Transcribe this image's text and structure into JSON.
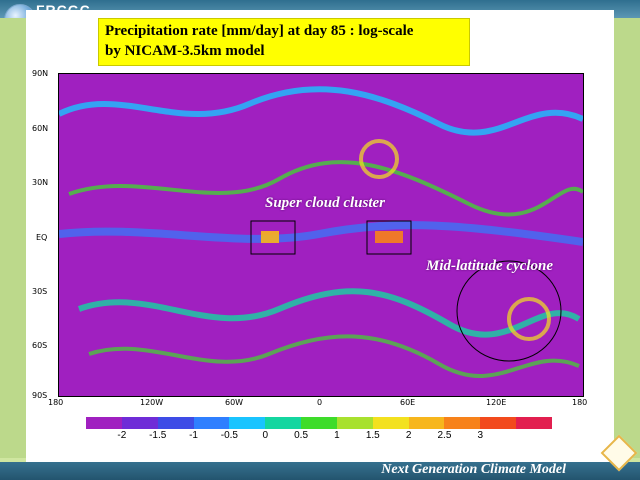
{
  "branding": {
    "name": "FRCGC",
    "icon": "globe-icon"
  },
  "title": {
    "line1": "Precipitation rate [mm/day] at day 85 : log-scale",
    "line2": "by NICAM-3.5km model"
  },
  "map": {
    "lat_labels": [
      "90N",
      "60N",
      "30N",
      "EQ",
      "30S",
      "60S",
      "90S"
    ],
    "lon_labels": [
      "180",
      "120W",
      "60W",
      "0",
      "60E",
      "120E",
      "180"
    ],
    "annotations": {
      "cluster": "Super cloud cluster",
      "cyclone": "Mid-latitude cyclone"
    }
  },
  "colorbar": {
    "colors": [
      "#a020c0",
      "#6f2cd7",
      "#3e4ce6",
      "#2f7fff",
      "#19c4ff",
      "#14d6a0",
      "#3edc2a",
      "#a8e12e",
      "#f3e11f",
      "#f7b61c",
      "#f7821a",
      "#f24a1d",
      "#e21f4f"
    ],
    "labels": [
      "-2",
      "-1.5",
      "-1",
      "-0.5",
      "0",
      "0.5",
      "1",
      "1.5",
      "2",
      "2.5",
      "3"
    ]
  },
  "footer": {
    "title": "Next Generation Climate Model"
  }
}
